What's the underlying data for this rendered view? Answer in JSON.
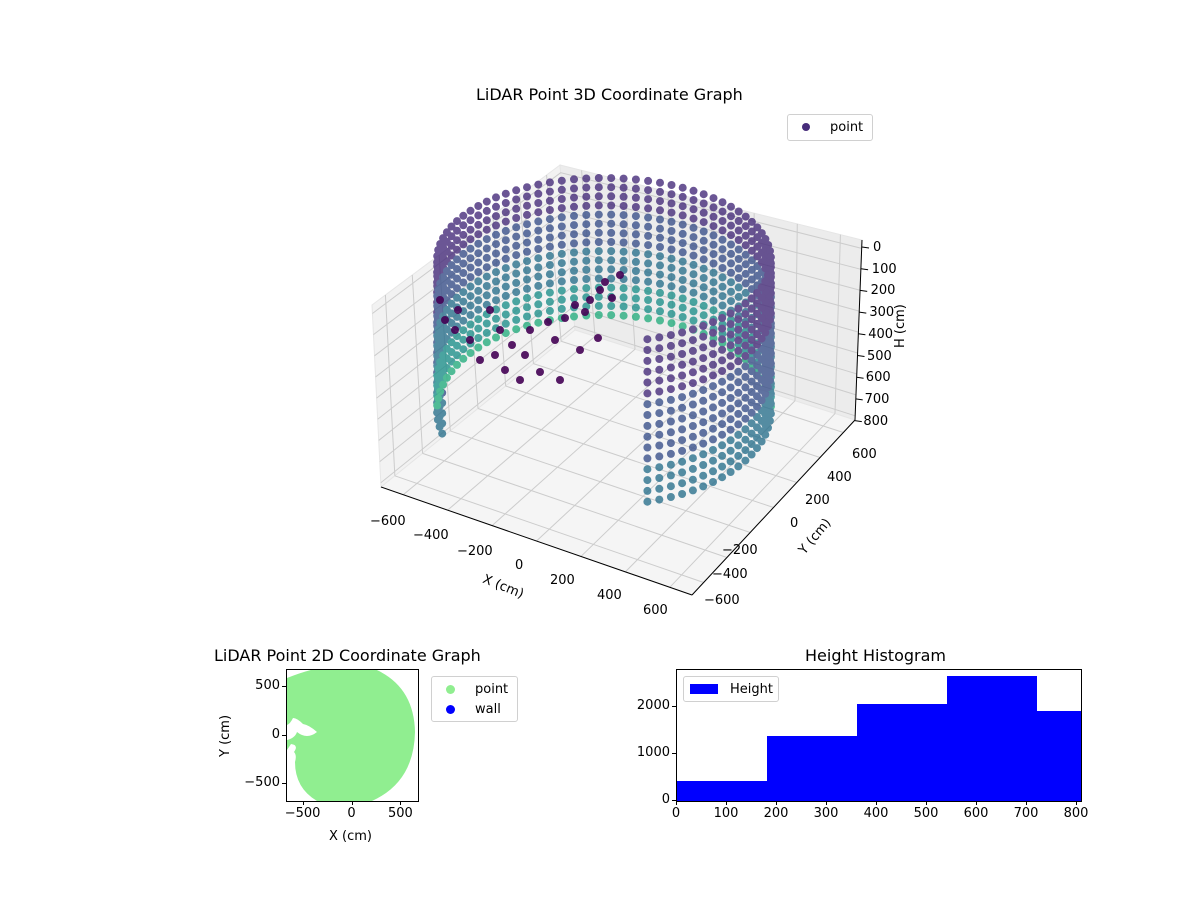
{
  "chart_data": [
    {
      "type": "scatter",
      "projection": "3d",
      "title": "LiDAR Point 3D Coordinate Graph",
      "xlabel": "X (cm)",
      "ylabel": "Y (cm)",
      "zlabel": "H (cm)",
      "xticks": [
        "−600",
        "−400",
        "−200",
        "0",
        "200",
        "400",
        "600"
      ],
      "yticks": [
        "−600",
        "−400",
        "−200",
        "0",
        "200",
        "400",
        "600"
      ],
      "zticks": [
        "0",
        "100",
        "200",
        "300",
        "400",
        "500",
        "600",
        "700",
        "800"
      ],
      "xlim": [
        -650,
        650
      ],
      "ylim": [
        -650,
        650
      ],
      "zlim": [
        800,
        0
      ],
      "zaxis_inverted": true,
      "legend": [
        {
          "label": "point",
          "color": "#472d7b"
        }
      ],
      "legend_position": "upper right",
      "colormap": "viridis",
      "description": "Cylindrical wall of points radius ~620 cm, heights 0-800 cm, with an irregular opening/clutter region on the negative-X side"
    },
    {
      "type": "scatter",
      "title": "LiDAR Point 2D Coordinate Graph",
      "xlabel": "X (cm)",
      "ylabel": "Y (cm)",
      "xticks": [
        "−500",
        "0",
        "500"
      ],
      "yticks": [
        "−500",
        "0",
        "500"
      ],
      "xlim": [
        -670,
        670
      ],
      "ylim": [
        -670,
        670
      ],
      "legend": [
        {
          "label": "point",
          "color": "#90ee90"
        },
        {
          "label": "wall",
          "color": "#0000ff"
        }
      ],
      "legend_position": "outside upper right",
      "description": "Filled disc of points radius ~620 cm centered at origin with notch near (-550, 0)"
    },
    {
      "type": "bar",
      "subtype": "histogram",
      "title": "Height Histogram",
      "bin_edges": [
        0,
        180,
        360,
        540,
        720,
        808
      ],
      "values": [
        420,
        1390,
        2060,
        2650,
        1920
      ],
      "xticks": [
        "0",
        "100",
        "200",
        "300",
        "400",
        "500",
        "600",
        "700",
        "800"
      ],
      "yticks": [
        "0",
        "1000",
        "2000"
      ],
      "xlim": [
        0,
        808
      ],
      "ylim": [
        0,
        2780
      ],
      "legend": [
        {
          "label": "Height",
          "color": "#0000ff"
        }
      ],
      "legend_position": "upper left",
      "color": "#0000ff"
    }
  ]
}
